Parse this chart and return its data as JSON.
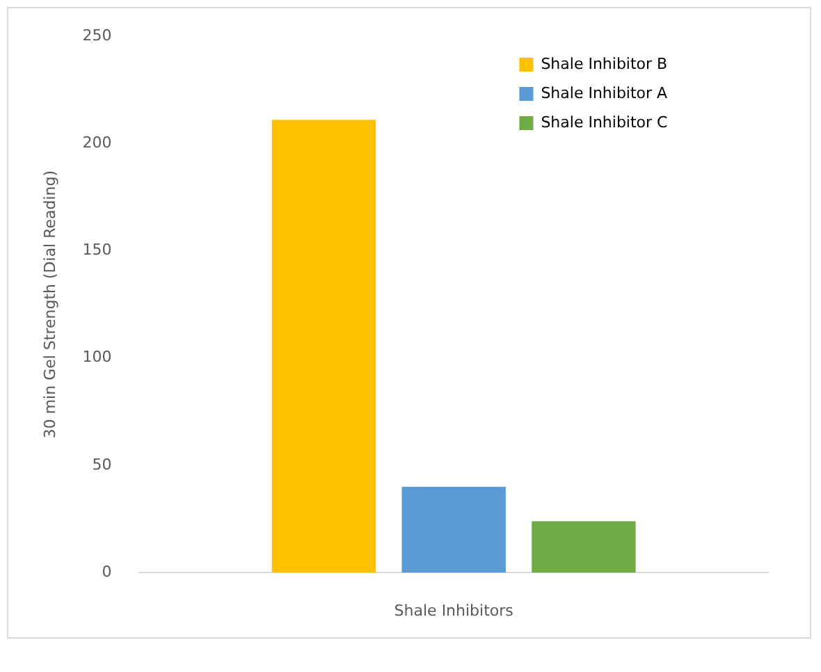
{
  "chart_data": {
    "type": "bar",
    "xlabel": "Shale Inhibitors",
    "ylabel": "30 min Gel Strength (Dial Reading)",
    "categories": [
      null
    ],
    "series": [
      {
        "name": "Shale Inhibitor B",
        "color": "#ffc000",
        "values": [
          211
        ]
      },
      {
        "name": "Shale Inhibitor A",
        "color": "#5b9bd5",
        "values": [
          40
        ]
      },
      {
        "name": "Shale Inhibitor C",
        "color": "#70ad47",
        "values": [
          24
        ]
      }
    ],
    "ylim": [
      0,
      250
    ],
    "yticks": [
      0,
      50,
      100,
      150,
      200,
      250
    ],
    "grid": false,
    "legend": "top right"
  }
}
